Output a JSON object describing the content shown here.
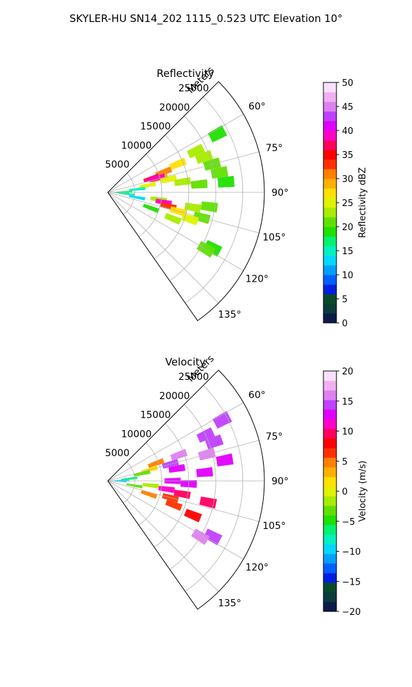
{
  "figure": {
    "suptitle": "SKYLER-HU  SN14_202  1115_0.523 UTC Elevation 10°"
  },
  "chart_data": [
    {
      "type": "heatmap",
      "projection": "polar-sector",
      "title": "Reflectivity",
      "radial_label": "Meters",
      "radial_ticks": [
        5000,
        10000,
        15000,
        20000,
        25000
      ],
      "radial_tick_labels": [
        "5000",
        "10000",
        "15000",
        "20000",
        "25000"
      ],
      "rmax": 29000,
      "azimuth_ticks": [
        60,
        75,
        90,
        105,
        120,
        135
      ],
      "azimuth_tick_labels": [
        "60°",
        "75°",
        "90°",
        "105°",
        "120°",
        "135°"
      ],
      "azimuth_range": [
        45,
        145
      ],
      "grid": true,
      "colorbar": {
        "label": "Reflectivity dBZ",
        "vmin": 0,
        "vmax": 50,
        "ticks": [
          0,
          5,
          10,
          15,
          20,
          25,
          30,
          35,
          40,
          45,
          50
        ],
        "tick_labels": [
          "0",
          "5",
          "10",
          "15",
          "20",
          "25",
          "30",
          "35",
          "40",
          "45",
          "50"
        ],
        "colors": [
          "#0b1b4a",
          "#0a3c3a",
          "#0a4a2a",
          "#001fe0",
          "#0060ff",
          "#00a0ff",
          "#00d8ff",
          "#00f0c0",
          "#00f070",
          "#20e000",
          "#60e000",
          "#a8ec00",
          "#e0f200",
          "#ffe000",
          "#ffb000",
          "#ff8000",
          "#ff3000",
          "#ff0000",
          "#ff0060",
          "#ff00c8",
          "#e000ff",
          "#c040ff",
          "#e080f0",
          "#f0b0f0",
          "#fae0fa"
        ]
      },
      "cells": [
        {
          "az": 70,
          "r": 19000,
          "value": 22
        },
        {
          "az": 75,
          "r": 20000,
          "value": 21
        },
        {
          "az": 80,
          "r": 21000,
          "value": 20
        },
        {
          "az": 85,
          "r": 22000,
          "value": 19
        },
        {
          "az": 65,
          "r": 18000,
          "value": 22
        },
        {
          "az": 62,
          "r": 23000,
          "value": 19
        },
        {
          "az": 68,
          "r": 14000,
          "value": 27
        },
        {
          "az": 70,
          "r": 11000,
          "value": 30
        },
        {
          "az": 75,
          "r": 10000,
          "value": 28
        },
        {
          "az": 72,
          "r": 8500,
          "value": 36
        },
        {
          "az": 74,
          "r": 9500,
          "value": 38
        },
        {
          "az": 78,
          "r": 11500,
          "value": 25
        },
        {
          "az": 80,
          "r": 7500,
          "value": 24
        },
        {
          "az": 84,
          "r": 5500,
          "value": 14
        },
        {
          "az": 82,
          "r": 14000,
          "value": 22
        },
        {
          "az": 85,
          "r": 17000,
          "value": 20
        },
        {
          "az": 88,
          "r": 3000,
          "value": 16
        },
        {
          "az": 90,
          "r": 1800,
          "value": 28
        },
        {
          "az": 92,
          "r": 2500,
          "value": 16
        },
        {
          "az": 95,
          "r": 3500,
          "value": 14
        },
        {
          "az": 100,
          "r": 5500,
          "value": 13
        },
        {
          "az": 98,
          "r": 9500,
          "value": 22
        },
        {
          "az": 100,
          "r": 10500,
          "value": 38
        },
        {
          "az": 103,
          "r": 11500,
          "value": 32
        },
        {
          "az": 105,
          "r": 13500,
          "value": 26
        },
        {
          "az": 100,
          "r": 16000,
          "value": 22
        },
        {
          "az": 98,
          "r": 19000,
          "value": 20
        },
        {
          "az": 105,
          "r": 18000,
          "value": 20
        },
        {
          "az": 110,
          "r": 8500,
          "value": 18
        },
        {
          "az": 108,
          "r": 16000,
          "value": 25
        },
        {
          "az": 112,
          "r": 13000,
          "value": 23
        },
        {
          "az": 118,
          "r": 22000,
          "value": 19
        },
        {
          "az": 120,
          "r": 21000,
          "value": 20
        }
      ]
    },
    {
      "type": "heatmap",
      "projection": "polar-sector",
      "title": "Velocity",
      "radial_label": "Meters",
      "radial_ticks": [
        5000,
        10000,
        15000,
        20000,
        25000
      ],
      "radial_tick_labels": [
        "5000",
        "10000",
        "15000",
        "20000",
        "25000"
      ],
      "rmax": 29000,
      "azimuth_ticks": [
        60,
        75,
        90,
        105,
        120,
        135
      ],
      "azimuth_tick_labels": [
        "60°",
        "75°",
        "90°",
        "105°",
        "120°",
        "135°"
      ],
      "azimuth_range": [
        45,
        145
      ],
      "grid": true,
      "colorbar": {
        "label": "Velocity (m/s)",
        "vmin": -20,
        "vmax": 20,
        "ticks": [
          -20,
          -15,
          -10,
          -5,
          0,
          5,
          10,
          15,
          20
        ],
        "tick_labels": [
          "−20",
          "−15",
          "−10",
          "−5",
          "0",
          "5",
          "10",
          "15",
          "20"
        ],
        "colors": [
          "#0b1b4a",
          "#0a3c3a",
          "#0a4a2a",
          "#001fe0",
          "#0060ff",
          "#00a0ff",
          "#00d8ff",
          "#00f0c0",
          "#00f070",
          "#20e000",
          "#60e000",
          "#a8ec00",
          "#e0f200",
          "#ffe000",
          "#ffb000",
          "#ff8000",
          "#ff3000",
          "#ff0000",
          "#ff0060",
          "#ff00c8",
          "#e000ff",
          "#c040ff",
          "#e080f0",
          "#f0b0f0",
          "#fae0fa"
        ]
      },
      "cells": [
        {
          "az": 65,
          "r": 20000,
          "value": 15
        },
        {
          "az": 70,
          "r": 21000,
          "value": 14
        },
        {
          "az": 75,
          "r": 19000,
          "value": 16
        },
        {
          "az": 80,
          "r": 22000,
          "value": 13
        },
        {
          "az": 85,
          "r": 18000,
          "value": 12
        },
        {
          "az": 62,
          "r": 24000,
          "value": 14
        },
        {
          "az": 70,
          "r": 14000,
          "value": 16
        },
        {
          "az": 75,
          "r": 12000,
          "value": 14
        },
        {
          "az": 80,
          "r": 13000,
          "value": 13
        },
        {
          "az": 70,
          "r": 9500,
          "value": 5
        },
        {
          "az": 75,
          "r": 8000,
          "value": 1
        },
        {
          "az": 78,
          "r": 6500,
          "value": -3
        },
        {
          "az": 84,
          "r": 4000,
          "value": -6
        },
        {
          "az": 88,
          "r": 2500,
          "value": -9
        },
        {
          "az": 92,
          "r": 2000,
          "value": -10
        },
        {
          "az": 90,
          "r": 12000,
          "value": 13
        },
        {
          "az": 92,
          "r": 15000,
          "value": 12
        },
        {
          "az": 98,
          "r": 11000,
          "value": 11
        },
        {
          "az": 100,
          "r": 14000,
          "value": 10
        },
        {
          "az": 102,
          "r": 19000,
          "value": 9
        },
        {
          "az": 105,
          "r": 12000,
          "value": 7
        },
        {
          "az": 108,
          "r": 8000,
          "value": 4
        },
        {
          "az": 110,
          "r": 13000,
          "value": 6
        },
        {
          "az": 112,
          "r": 17000,
          "value": 8
        },
        {
          "az": 100,
          "r": 5000,
          "value": -4
        },
        {
          "az": 96,
          "r": 8000,
          "value": -2
        },
        {
          "az": 118,
          "r": 22000,
          "value": 15
        },
        {
          "az": 121,
          "r": 20000,
          "value": 16
        }
      ]
    }
  ]
}
